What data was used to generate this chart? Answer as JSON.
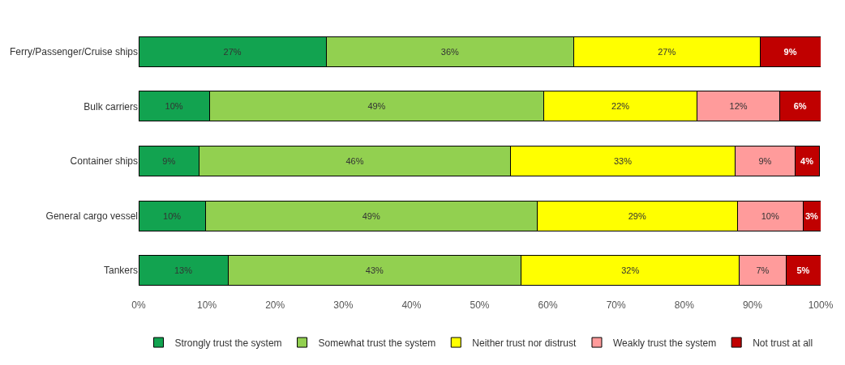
{
  "chart_data": {
    "type": "bar",
    "orientation": "horizontal",
    "stacked": true,
    "legend": "bottom",
    "grid": false,
    "categories": [
      "Ferry/Passenger/Cruise ships",
      "Bulk carriers",
      "Container ships",
      "General cargo vessel",
      "Tankers"
    ],
    "series": [
      {
        "name": "Strongly trust the system",
        "color": "#12a350",
        "values": [
          27.5,
          10.4,
          8.9,
          9.8,
          13.1
        ],
        "value_labels": [
          "27%",
          "10%",
          "9%",
          "10%",
          "13%"
        ]
      },
      {
        "name": "Somewhat trust the system",
        "color": "#92d050",
        "values": [
          36.3,
          49.0,
          45.6,
          48.6,
          43.0
        ],
        "value_labels": [
          "36%",
          "49%",
          "46%",
          "49%",
          "43%"
        ]
      },
      {
        "name": "Neither trust nor distrust",
        "color": "#ffff00",
        "values": [
          27.3,
          22.5,
          33.0,
          29.4,
          32.0
        ],
        "value_labels": [
          "27%",
          "22%",
          "33%",
          "29%",
          "32%"
        ]
      },
      {
        "name": "Weakly trust the system",
        "color": "#ff9b9b",
        "values": [
          null,
          12.1,
          8.7,
          9.6,
          6.8
        ],
        "value_labels": [
          null,
          "12%",
          "9%",
          "10%",
          "7%"
        ]
      },
      {
        "name": "Not trust at all",
        "color": "#c00000",
        "values": [
          8.9,
          6.0,
          3.6,
          2.6,
          5.1
        ],
        "value_labels": [
          "9%",
          "6%",
          "4%",
          "3%",
          "5%"
        ]
      }
    ],
    "xlim": [
      0,
      100
    ],
    "xticks": [
      {
        "value": 0,
        "label": "0%"
      },
      {
        "value": 10,
        "label": "10%"
      },
      {
        "value": 20,
        "label": "20%"
      },
      {
        "value": 30,
        "label": "30%"
      },
      {
        "value": 40,
        "label": "40%"
      },
      {
        "value": 50,
        "label": "50%"
      },
      {
        "value": 60,
        "label": "60%"
      },
      {
        "value": 70,
        "label": "70%"
      },
      {
        "value": 80,
        "label": "80%"
      },
      {
        "value": 90,
        "label": "90%"
      },
      {
        "value": 100,
        "label": "100%"
      }
    ]
  }
}
